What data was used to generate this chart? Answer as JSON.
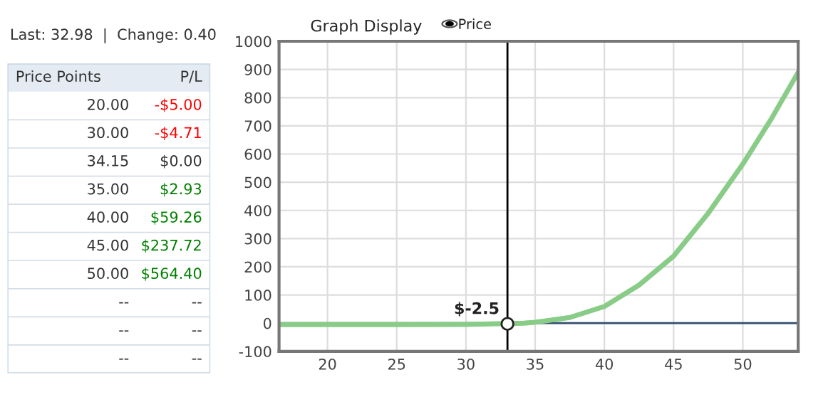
{
  "chart_data": [
    {
      "type": "other",
      "annotations": [
        "Last: 32.98  |  Change: 0.40"
      ],
      "xlabel": "Price Points",
      "ylabel": "P/L",
      "categories": [
        "20.00",
        "30.00",
        "34.15",
        "35.00",
        "40.00",
        "45.00",
        "50.00",
        "--",
        "--",
        "--"
      ],
      "value_labels": [
        "-$5.00",
        "-$4.71",
        "$0.00",
        "$2.93",
        "$59.26",
        "$237.72",
        "$564.40",
        "--",
        "--",
        "--"
      ],
      "colors": [
        "#ff0000",
        "#ff0000",
        "#333333",
        "#008000",
        "#008000",
        "#008000",
        "#008000",
        "#333333",
        "#333333",
        "#333333"
      ]
    },
    {
      "type": "line",
      "title": "Graph Display",
      "annotations": [
        "Price",
        {
          "text": "$-2.5",
          "x": 33,
          "y": -2.5
        }
      ],
      "series": [
        {
          "color": "#88cc88",
          "x": [
            16.5,
            20,
            25,
            30,
            34.15,
            35,
            37.5,
            40,
            42.5,
            45,
            47.5,
            50,
            52,
            54
          ],
          "values": [
            -5,
            -5,
            -5,
            -4.71,
            0,
            2.93,
            20,
            59.26,
            135,
            237.72,
            390,
            564.4,
            720,
            890
          ]
        }
      ],
      "xlim": [
        16.5,
        54
      ],
      "xticks": [
        20,
        25,
        30,
        35,
        40,
        45,
        50
      ],
      "ylim": [
        -100,
        1000
      ],
      "yticks": [
        -100,
        0,
        100,
        200,
        300,
        400,
        500,
        600,
        700,
        800,
        900,
        1000
      ],
      "grid": true,
      "marker": "none",
      "line_style": "solid",
      "ref_lines": [
        {
          "axis": "y",
          "value": 0,
          "color": "#334d6e"
        },
        {
          "axis": "x",
          "value": 33,
          "color": "#000000"
        }
      ]
    }
  ]
}
